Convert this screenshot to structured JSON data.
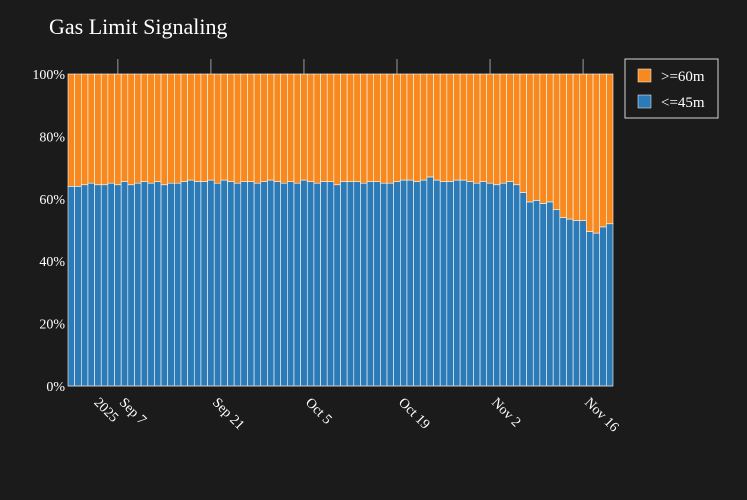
{
  "chart_data": {
    "type": "bar",
    "stacked": true,
    "normalized": true,
    "title": "Gas Limit Signaling",
    "xlabel": "",
    "ylabel": "",
    "ylim": [
      0,
      100
    ],
    "yticks": [
      "0%",
      "20%",
      "40%",
      "60%",
      "80%",
      "100%"
    ],
    "xtick_labels": [
      {
        "date": "2025-09-07",
        "label": "Sep 7",
        "sublabel": "2025"
      },
      {
        "date": "2025-09-21",
        "label": "Sep 21"
      },
      {
        "date": "2025-10-05",
        "label": "Oct 5"
      },
      {
        "date": "2025-10-19",
        "label": "Oct 19"
      },
      {
        "date": "2025-11-02",
        "label": "Nov 2"
      },
      {
        "date": "2025-11-16",
        "label": "Nov 16"
      }
    ],
    "start_date": "2025-08-31",
    "interval_days": 1,
    "legend_position": "top-right",
    "series": [
      {
        "name": "<=45m",
        "color": "#2d7bb6",
        "values": [
          64.0,
          64.0,
          64.5,
          65.0,
          64.5,
          64.5,
          65.0,
          64.5,
          65.5,
          64.5,
          65.0,
          65.5,
          65.0,
          65.5,
          64.5,
          65.0,
          65.0,
          65.5,
          66.0,
          65.5,
          65.5,
          66.0,
          65.0,
          66.0,
          65.5,
          65.0,
          65.5,
          65.5,
          65.0,
          65.5,
          66.0,
          65.5,
          65.0,
          65.5,
          65.0,
          66.0,
          65.5,
          65.0,
          65.5,
          65.5,
          64.5,
          65.5,
          65.5,
          65.5,
          65.0,
          65.5,
          65.5,
          65.0,
          65.0,
          65.5,
          66.0,
          66.0,
          65.5,
          66.0,
          67.0,
          66.0,
          65.5,
          65.5,
          66.0,
          66.0,
          65.5,
          65.0,
          65.5,
          65.0,
          64.5,
          65.0,
          65.5,
          64.5,
          62.0,
          59.0,
          59.5,
          58.5,
          59.0,
          56.5,
          54.0,
          53.5,
          53.0,
          53.0,
          49.5,
          49.0,
          51.0,
          52.0
        ]
      },
      {
        "name": ">=60m",
        "color": "#f7891f",
        "values": [
          36.0,
          36.0,
          35.5,
          35.0,
          35.5,
          35.5,
          35.0,
          35.5,
          34.5,
          35.5,
          35.0,
          34.5,
          35.0,
          34.5,
          35.5,
          35.0,
          35.0,
          34.5,
          34.0,
          34.5,
          34.5,
          34.0,
          35.0,
          34.0,
          34.5,
          35.0,
          34.5,
          34.5,
          35.0,
          34.5,
          34.0,
          34.5,
          35.0,
          34.5,
          35.0,
          34.0,
          34.5,
          35.0,
          34.5,
          34.5,
          35.5,
          34.5,
          34.5,
          34.5,
          35.0,
          34.5,
          34.5,
          35.0,
          35.0,
          34.5,
          34.0,
          34.0,
          34.5,
          34.0,
          33.0,
          34.0,
          34.5,
          34.5,
          34.0,
          34.0,
          34.5,
          35.0,
          34.5,
          35.0,
          35.5,
          35.0,
          34.5,
          35.5,
          38.0,
          41.0,
          40.5,
          41.5,
          41.0,
          43.5,
          46.0,
          46.5,
          47.0,
          47.0,
          50.5,
          51.0,
          49.0,
          48.0
        ]
      }
    ]
  }
}
